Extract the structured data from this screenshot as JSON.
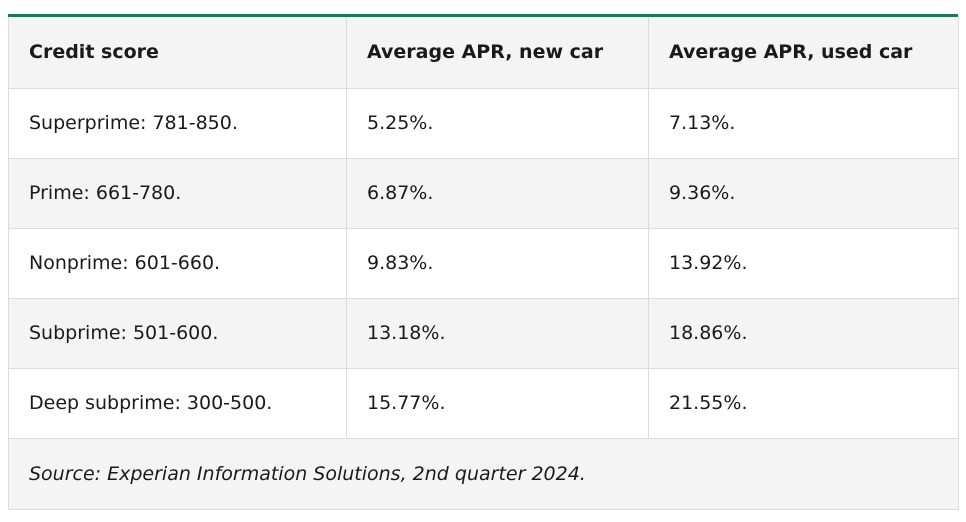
{
  "table": {
    "headers": [
      "Credit score",
      "Average APR, new car",
      "Average APR, used car"
    ],
    "rows": [
      [
        "Superprime: 781-850.",
        "5.25%.",
        "7.13%."
      ],
      [
        "Prime: 661-780.",
        "6.87%.",
        "9.36%."
      ],
      [
        "Nonprime: 601-660.",
        "9.83%.",
        "13.92%."
      ],
      [
        "Subprime: 501-600.",
        "13.18%.",
        "18.86%."
      ],
      [
        "Deep subprime: 300-500.",
        "15.77%.",
        "21.55%."
      ]
    ],
    "source": "Source: Experian Information Solutions, 2nd quarter 2024."
  },
  "colors": {
    "accent": "#1c7a4f",
    "row_alt": "#f4f4f4",
    "border": "#dcdcdc"
  }
}
